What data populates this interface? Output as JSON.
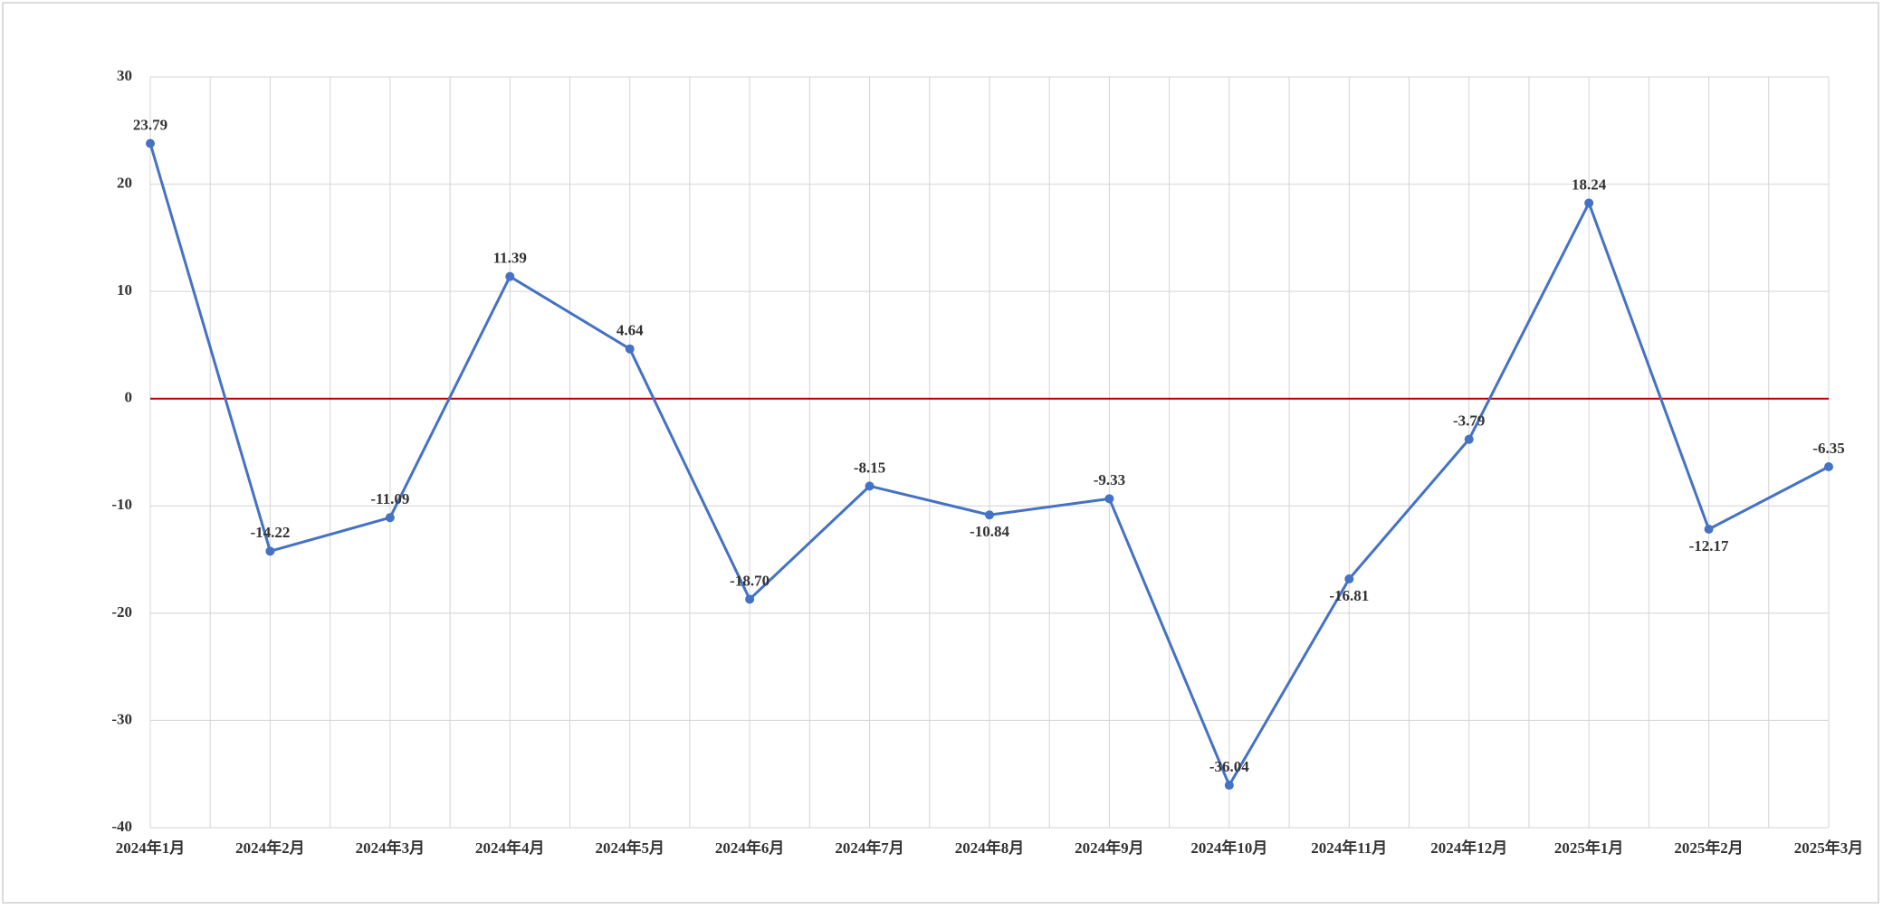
{
  "chart_data": {
    "type": "line",
    "categories": [
      "2024年1月",
      "2024年2月",
      "2024年3月",
      "2024年4月",
      "2024年5月",
      "2024年6月",
      "2024年7月",
      "2024年8月",
      "2024年9月",
      "2024年10月",
      "2024年11月",
      "2024年12月",
      "2025年1月",
      "2025年2月",
      "2025年3月"
    ],
    "series": [
      {
        "color": "#4472c4",
        "values": [
          23.79,
          -14.22,
          -11.09,
          11.39,
          4.64,
          -18.7,
          -8.15,
          -10.84,
          -9.33,
          -36.04,
          -16.81,
          -3.79,
          18.24,
          -12.17,
          -6.35
        ],
        "value_labels": [
          "23.79",
          "-14.22",
          "-11.09",
          "11.39",
          "4.64",
          "-18.70",
          "-8.15",
          "-10.84",
          "-9.33",
          "-36.04",
          "-16.81",
          "-3.79",
          "18.24",
          "-12.17",
          "-6.35"
        ]
      }
    ],
    "ylim": [
      -40,
      30
    ],
    "yticks": [
      -40,
      -30,
      -20,
      -10,
      0,
      10,
      20,
      30
    ],
    "grid": true,
    "zero_line_color": "#c00000"
  }
}
